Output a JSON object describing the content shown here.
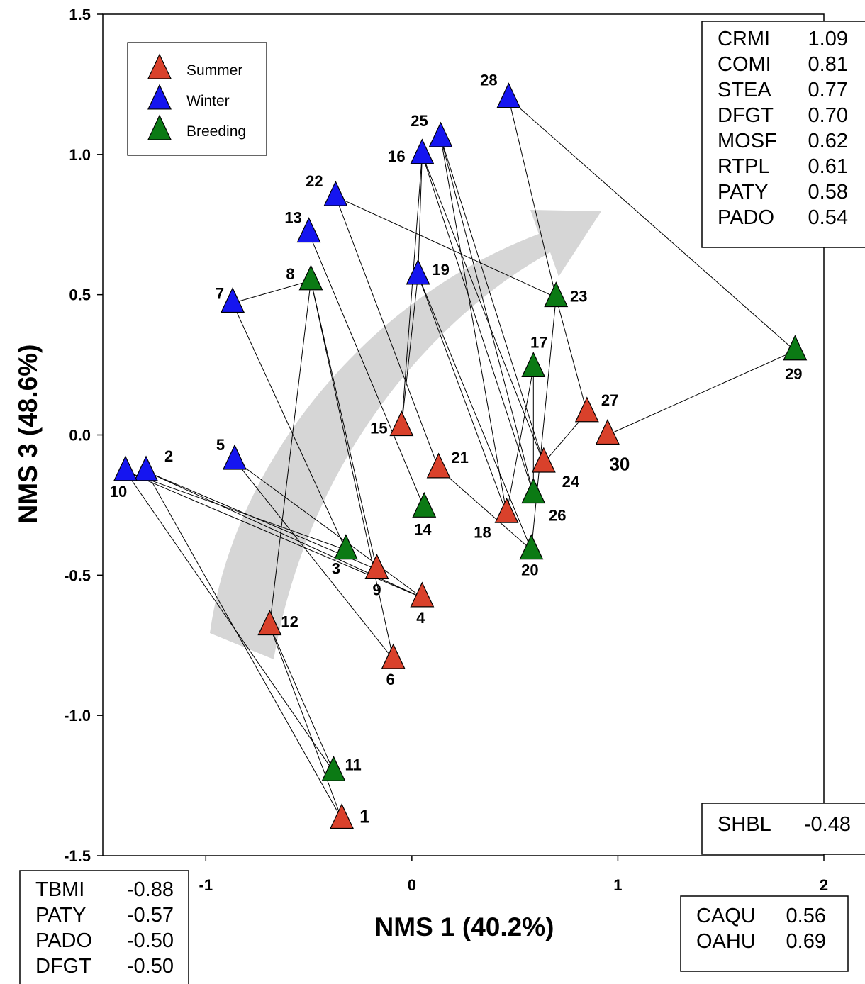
{
  "chart_data": {
    "type": "scatter",
    "title": "",
    "xlabel": "NMS 1 (40.2%)",
    "ylabel": "NMS 3 (48.6%)",
    "xlim": [
      -1.5,
      2
    ],
    "ylim": [
      -1.5,
      1.5
    ],
    "x_ticks": [
      "-1",
      "0",
      "1",
      "2"
    ],
    "y_ticks": [
      "-1.5",
      "-1.0",
      "-0.5",
      "0.0",
      "0.5",
      "1.0",
      "1.5"
    ],
    "legend_position": "top-left",
    "colors": {
      "Summer": "#d9412b",
      "Winter": "#1515f0",
      "Breeding": "#0b7a14"
    },
    "series": [
      {
        "name": "Summer",
        "points": [
          {
            "id": "1",
            "x": -0.34,
            "y": -1.37
          },
          {
            "id": "4",
            "x": 0.05,
            "y": -0.58
          },
          {
            "id": "6",
            "x": -0.09,
            "y": -0.8
          },
          {
            "id": "9",
            "x": -0.17,
            "y": -0.48
          },
          {
            "id": "12",
            "x": -0.69,
            "y": -0.68
          },
          {
            "id": "15",
            "x": -0.05,
            "y": 0.03
          },
          {
            "id": "18",
            "x": 0.46,
            "y": -0.28
          },
          {
            "id": "21",
            "x": 0.13,
            "y": -0.12
          },
          {
            "id": "24",
            "x": 0.64,
            "y": -0.1
          },
          {
            "id": "27",
            "x": 0.85,
            "y": 0.08
          },
          {
            "id": "30",
            "x": 0.95,
            "y": 0.0
          }
        ]
      },
      {
        "name": "Winter",
        "points": [
          {
            "id": "2",
            "x": -1.29,
            "y": -0.13
          },
          {
            "id": "5",
            "x": -0.86,
            "y": -0.09
          },
          {
            "id": "7",
            "x": -0.87,
            "y": 0.47
          },
          {
            "id": "10",
            "x": -1.39,
            "y": -0.13
          },
          {
            "id": "13",
            "x": -0.5,
            "y": 0.72
          },
          {
            "id": "16",
            "x": 0.05,
            "y": 1.0
          },
          {
            "id": "19",
            "x": 0.03,
            "y": 0.57
          },
          {
            "id": "22",
            "x": -0.37,
            "y": 0.85
          },
          {
            "id": "25",
            "x": 0.14,
            "y": 1.06
          },
          {
            "id": "28",
            "x": 0.47,
            "y": 1.2
          }
        ]
      },
      {
        "name": "Breeding",
        "points": [
          {
            "id": "3",
            "x": -0.32,
            "y": -0.41
          },
          {
            "id": "8",
            "x": -0.49,
            "y": 0.55
          },
          {
            "id": "11",
            "x": -0.38,
            "y": -1.2
          },
          {
            "id": "14",
            "x": 0.06,
            "y": -0.26
          },
          {
            "id": "17",
            "x": 0.59,
            "y": 0.24
          },
          {
            "id": "20",
            "x": 0.58,
            "y": -0.41
          },
          {
            "id": "23",
            "x": 0.7,
            "y": 0.49
          },
          {
            "id": "26",
            "x": 0.59,
            "y": -0.21
          },
          {
            "id": "29",
            "x": 1.86,
            "y": 0.3
          }
        ]
      }
    ],
    "connections": [
      [
        "10",
        "11"
      ],
      [
        "10",
        "3"
      ],
      [
        "10",
        "4"
      ],
      [
        "2",
        "1"
      ],
      [
        "2",
        "9"
      ],
      [
        "2",
        "4"
      ],
      [
        "5",
        "6"
      ],
      [
        "5",
        "4"
      ],
      [
        "7",
        "8"
      ],
      [
        "7",
        "3"
      ],
      [
        "8",
        "12"
      ],
      [
        "8",
        "6"
      ],
      [
        "8",
        "9"
      ],
      [
        "13",
        "14"
      ],
      [
        "22",
        "21"
      ],
      [
        "22",
        "23"
      ],
      [
        "16",
        "15"
      ],
      [
        "16",
        "19"
      ],
      [
        "16",
        "24"
      ],
      [
        "16",
        "26"
      ],
      [
        "15",
        "19"
      ],
      [
        "19",
        "18"
      ],
      [
        "19",
        "20"
      ],
      [
        "25",
        "18"
      ],
      [
        "25",
        "24"
      ],
      [
        "25",
        "26"
      ],
      [
        "28",
        "23"
      ],
      [
        "28",
        "29"
      ],
      [
        "29",
        "30"
      ],
      [
        "23",
        "27"
      ],
      [
        "23",
        "20"
      ],
      [
        "17",
        "18"
      ],
      [
        "17",
        "26"
      ],
      [
        "24",
        "27"
      ],
      [
        "21",
        "20"
      ],
      [
        "12",
        "11"
      ],
      [
        "12",
        "1"
      ]
    ],
    "arrow": "trend from lower-left to upper-right",
    "loading_boxes": {
      "top_right": [
        {
          "species": "CRMI",
          "value": "1.09"
        },
        {
          "species": "COMI",
          "value": "0.81"
        },
        {
          "species": "STEA",
          "value": "0.77"
        },
        {
          "species": "DFGT",
          "value": "0.70"
        },
        {
          "species": "MOSF",
          "value": "0.62"
        },
        {
          "species": "RTPL",
          "value": "0.61"
        },
        {
          "species": "PATY",
          "value": "0.58"
        },
        {
          "species": "PADO",
          "value": "0.54"
        }
      ],
      "mid_right": [
        {
          "species": "SHBL",
          "value": "-0.48"
        }
      ],
      "bottom_left": [
        {
          "species": "TBMI",
          "value": "-0.88"
        },
        {
          "species": "PATY",
          "value": "-0.57"
        },
        {
          "species": "PADO",
          "value": "-0.50"
        },
        {
          "species": "DFGT",
          "value": "-0.50"
        }
      ],
      "bottom_right": [
        {
          "species": "CAQU",
          "value": "0.56"
        },
        {
          "species": "OAHU",
          "value": "0.69"
        }
      ]
    }
  }
}
